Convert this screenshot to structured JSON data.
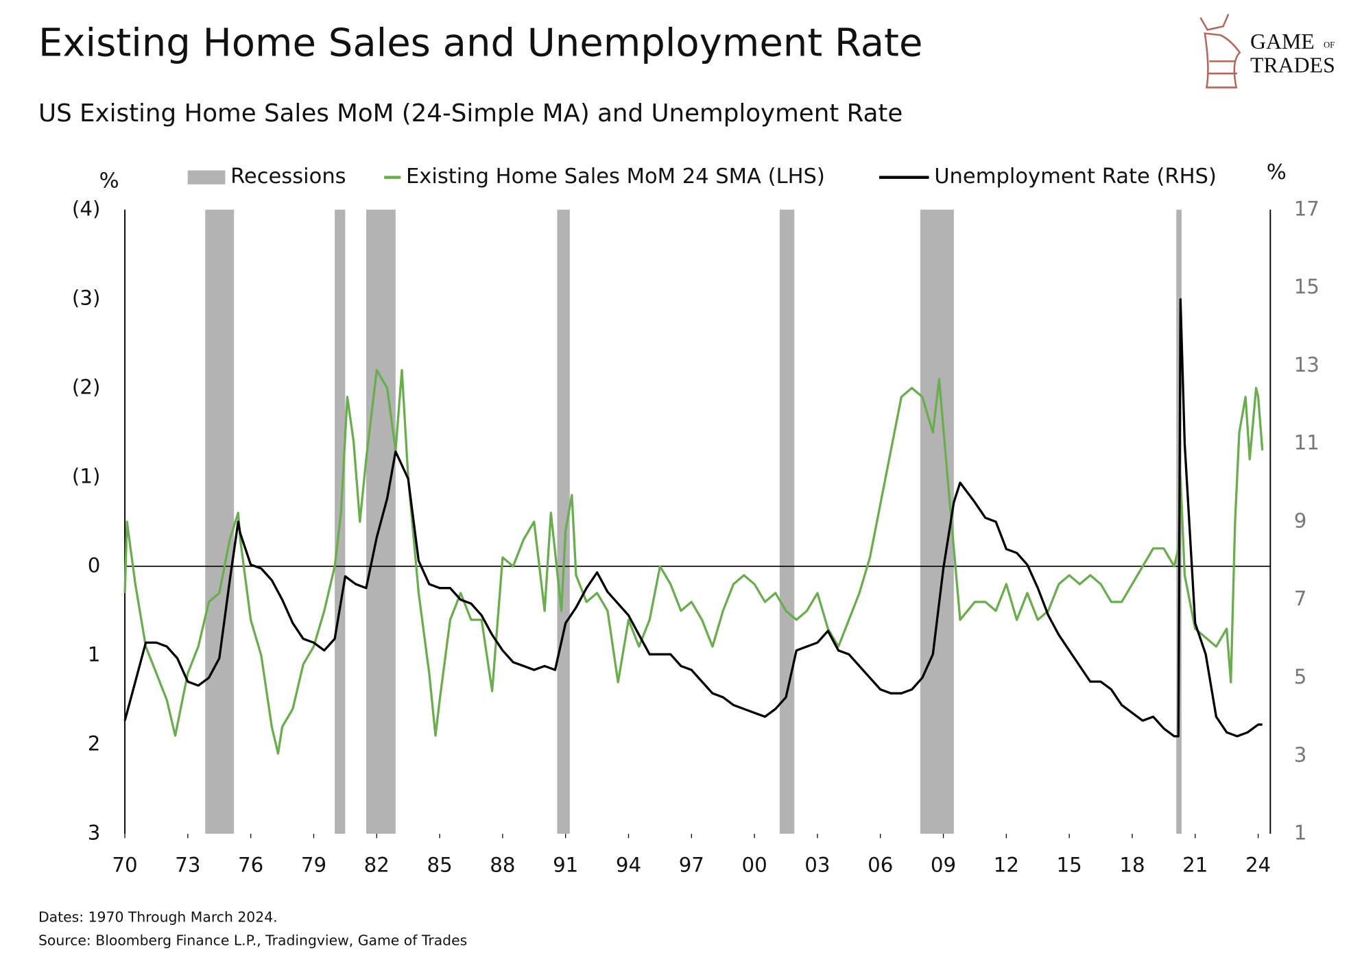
{
  "chart_data": {
    "type": "line",
    "title": "Existing Home Sales and Unemployment Rate",
    "subtitle": "US Existing Home Sales MoM (24-Simple MA) and Unemployment Rate",
    "logo": [
      "GAME",
      "OF",
      "TRADES"
    ],
    "ylabel": "%",
    "y2label": "%",
    "notes": [
      "Dates: 1970 Through March 2024.",
      "Source: Bloomberg Finance L.P., Tradingview, Game of Trades"
    ],
    "xlim": [
      1970,
      2024.58
    ],
    "xticks": [
      {
        "value": 1970,
        "label": "70"
      },
      {
        "value": 1973,
        "label": "73"
      },
      {
        "value": 1976,
        "label": "76"
      },
      {
        "value": 1979,
        "label": "79"
      },
      {
        "value": 1982,
        "label": "82"
      },
      {
        "value": 1985,
        "label": "85"
      },
      {
        "value": 1988,
        "label": "88"
      },
      {
        "value": 1991,
        "label": "91"
      },
      {
        "value": 1994,
        "label": "94"
      },
      {
        "value": 1997,
        "label": "97"
      },
      {
        "value": 2000,
        "label": "00"
      },
      {
        "value": 2003,
        "label": "03"
      },
      {
        "value": 2006,
        "label": "06"
      },
      {
        "value": 2009,
        "label": "09"
      },
      {
        "value": 2012,
        "label": "12"
      },
      {
        "value": 2015,
        "label": "15"
      },
      {
        "value": 2018,
        "label": "18"
      },
      {
        "value": 2021,
        "label": "21"
      },
      {
        "value": 2024,
        "label": "24"
      }
    ],
    "ylim": [
      -4,
      3
    ],
    "y_inverted": true,
    "yticks": [
      {
        "value": -4,
        "label": "(4)"
      },
      {
        "value": -3,
        "label": "(3)"
      },
      {
        "value": -2,
        "label": "(2)"
      },
      {
        "value": -1,
        "label": "(1)"
      },
      0,
      1,
      2,
      3
    ],
    "y2lim": [
      1,
      17
    ],
    "y2ticks": [
      1,
      3,
      5,
      7,
      9,
      11,
      13,
      15,
      17
    ],
    "zero_line": true,
    "series": [
      {
        "name": "Recessions",
        "kind": "span",
        "color": "#b3b3b3",
        "x": [
          [
            1973.83,
            1975.2
          ],
          [
            1980.0,
            1980.5
          ],
          [
            1981.5,
            1982.9
          ],
          [
            1990.6,
            1991.2
          ],
          [
            2001.2,
            2001.9
          ],
          [
            2007.9,
            2009.5
          ],
          [
            2020.1,
            2020.35
          ]
        ]
      },
      {
        "name": "Existing Home Sales MoM 24 SMA (LHS)",
        "color": "#6aad4f",
        "axis": "y",
        "x": [
          1970.0,
          1970.1,
          1970.5,
          1971.0,
          1971.5,
          1972.0,
          1972.4,
          1973.0,
          1973.5,
          1974.0,
          1974.5,
          1975.0,
          1975.4,
          1975.5,
          1976.0,
          1976.5,
          1977.0,
          1977.3,
          1977.5,
          1978.0,
          1978.5,
          1979.0,
          1979.5,
          1980.0,
          1980.3,
          1980.6,
          1980.9,
          1981.2,
          1981.5,
          1982.0,
          1982.5,
          1982.9,
          1983.2,
          1983.5,
          1984.0,
          1984.5,
          1984.8,
          1985.0,
          1985.5,
          1986.0,
          1986.5,
          1987.0,
          1987.5,
          1988.0,
          1988.5,
          1989.0,
          1989.5,
          1990.0,
          1990.3,
          1990.8,
          1991.0,
          1991.3,
          1991.5,
          1992.0,
          1992.5,
          1993.0,
          1993.5,
          1994.0,
          1994.5,
          1995.0,
          1995.5,
          1996.0,
          1996.5,
          1997.0,
          1997.5,
          1998.0,
          1998.5,
          1999.0,
          1999.5,
          2000.0,
          2000.5,
          2001.0,
          2001.5,
          2002.0,
          2002.5,
          2003.0,
          2003.5,
          2004.0,
          2004.5,
          2005.0,
          2005.5,
          2006.0,
          2006.5,
          2007.0,
          2007.5,
          2008.0,
          2008.5,
          2008.8,
          2009.2,
          2009.5,
          2009.8,
          2010.5,
          2011.0,
          2011.5,
          2012.0,
          2012.5,
          2013.0,
          2013.5,
          2014.0,
          2014.5,
          2015.0,
          2015.5,
          2016.0,
          2016.5,
          2017.0,
          2017.5,
          2018.0,
          2018.5,
          2019.0,
          2019.5,
          2020.0,
          2020.2,
          2020.3,
          2020.5,
          2021.0,
          2021.5,
          2022.0,
          2022.5,
          2022.7,
          2022.9,
          2023.1,
          2023.4,
          2023.6,
          2023.9,
          2024.0,
          2024.2
        ],
        "values": [
          0.3,
          -0.5,
          0.2,
          0.9,
          1.2,
          1.5,
          1.9,
          1.2,
          0.9,
          0.4,
          0.3,
          -0.3,
          -0.6,
          -0.3,
          0.6,
          1.0,
          1.8,
          2.1,
          1.8,
          1.6,
          1.1,
          0.9,
          0.5,
          0.0,
          -0.6,
          -1.9,
          -1.4,
          -0.5,
          -1.2,
          -2.2,
          -2.0,
          -1.3,
          -2.2,
          -1.0,
          0.3,
          1.2,
          1.9,
          1.5,
          0.6,
          0.3,
          0.6,
          0.6,
          1.4,
          -0.1,
          0.0,
          -0.3,
          -0.5,
          0.5,
          -0.6,
          0.5,
          -0.4,
          -0.8,
          0.1,
          0.4,
          0.3,
          0.5,
          1.3,
          0.6,
          0.9,
          0.6,
          0.0,
          0.2,
          0.5,
          0.4,
          0.6,
          0.9,
          0.5,
          0.2,
          0.1,
          0.2,
          0.4,
          0.3,
          0.5,
          0.6,
          0.5,
          0.3,
          0.7,
          0.9,
          0.6,
          0.3,
          -0.1,
          -0.7,
          -1.3,
          -1.9,
          -2.0,
          -1.9,
          -1.5,
          -2.1,
          -1.0,
          -0.2,
          0.6,
          0.4,
          0.4,
          0.5,
          0.2,
          0.6,
          0.3,
          0.6,
          0.5,
          0.2,
          0.1,
          0.2,
          0.1,
          0.2,
          0.4,
          0.4,
          0.2,
          0.0,
          -0.2,
          -0.2,
          0.0,
          -0.2,
          -1.0,
          0.1,
          0.7,
          0.8,
          0.9,
          0.7,
          1.3,
          -0.5,
          -1.5,
          -1.9,
          -1.2,
          -2.0,
          -1.9,
          -1.3
        ]
      },
      {
        "name": "Unemployment Rate (RHS)",
        "color": "#000000",
        "axis": "y2",
        "x": [
          1970.0,
          1970.5,
          1971.0,
          1971.5,
          1972.0,
          1972.5,
          1973.0,
          1973.5,
          1974.0,
          1974.5,
          1975.0,
          1975.4,
          1975.5,
          1976.0,
          1976.5,
          1977.0,
          1977.5,
          1978.0,
          1978.5,
          1979.0,
          1979.5,
          1980.0,
          1980.5,
          1981.0,
          1981.5,
          1982.0,
          1982.5,
          1982.9,
          1983.5,
          1984.0,
          1984.5,
          1985.0,
          1985.5,
          1986.0,
          1986.5,
          1987.0,
          1987.5,
          1988.0,
          1988.5,
          1989.0,
          1989.5,
          1990.0,
          1990.5,
          1991.0,
          1991.5,
          1992.0,
          1992.5,
          1993.0,
          1993.5,
          1994.0,
          1994.5,
          1995.0,
          1995.5,
          1996.0,
          1996.5,
          1997.0,
          1997.5,
          1998.0,
          1998.5,
          1999.0,
          1999.5,
          2000.0,
          2000.5,
          2001.0,
          2001.5,
          2002.0,
          2002.5,
          2003.0,
          2003.5,
          2004.0,
          2004.5,
          2005.0,
          2005.5,
          2006.0,
          2006.5,
          2007.0,
          2007.5,
          2008.0,
          2008.5,
          2009.0,
          2009.5,
          2009.8,
          2010.5,
          2011.0,
          2011.5,
          2012.0,
          2012.5,
          2013.0,
          2013.5,
          2014.0,
          2014.5,
          2015.0,
          2015.5,
          2016.0,
          2016.5,
          2017.0,
          2017.5,
          2018.0,
          2018.5,
          2019.0,
          2019.5,
          2020.0,
          2020.2,
          2020.3,
          2020.5,
          2021.0,
          2021.5,
          2022.0,
          2022.5,
          2023.0,
          2023.5,
          2024.0,
          2024.2
        ],
        "values": [
          3.9,
          4.9,
          5.9,
          5.9,
          5.8,
          5.5,
          4.9,
          4.8,
          5.0,
          5.5,
          7.5,
          9.0,
          8.7,
          7.9,
          7.8,
          7.5,
          7.0,
          6.4,
          6.0,
          5.9,
          5.7,
          6.0,
          7.6,
          7.4,
          7.3,
          8.6,
          9.6,
          10.8,
          10.1,
          8.0,
          7.4,
          7.3,
          7.3,
          7.0,
          6.9,
          6.6,
          6.1,
          5.7,
          5.4,
          5.3,
          5.2,
          5.3,
          5.2,
          6.4,
          6.8,
          7.3,
          7.7,
          7.2,
          6.9,
          6.6,
          6.1,
          5.6,
          5.6,
          5.6,
          5.3,
          5.2,
          4.9,
          4.6,
          4.5,
          4.3,
          4.2,
          4.1,
          4.0,
          4.2,
          4.5,
          5.7,
          5.8,
          5.9,
          6.2,
          5.7,
          5.6,
          5.3,
          5.0,
          4.7,
          4.6,
          4.6,
          4.7,
          5.0,
          5.6,
          7.8,
          9.5,
          10.0,
          9.5,
          9.1,
          9.0,
          8.3,
          8.2,
          7.9,
          7.3,
          6.6,
          6.1,
          5.7,
          5.3,
          4.9,
          4.9,
          4.7,
          4.3,
          4.1,
          3.9,
          4.0,
          3.7,
          3.5,
          3.5,
          14.7,
          11.0,
          6.4,
          5.6,
          4.0,
          3.6,
          3.5,
          3.6,
          3.8,
          3.8
        ]
      }
    ]
  }
}
